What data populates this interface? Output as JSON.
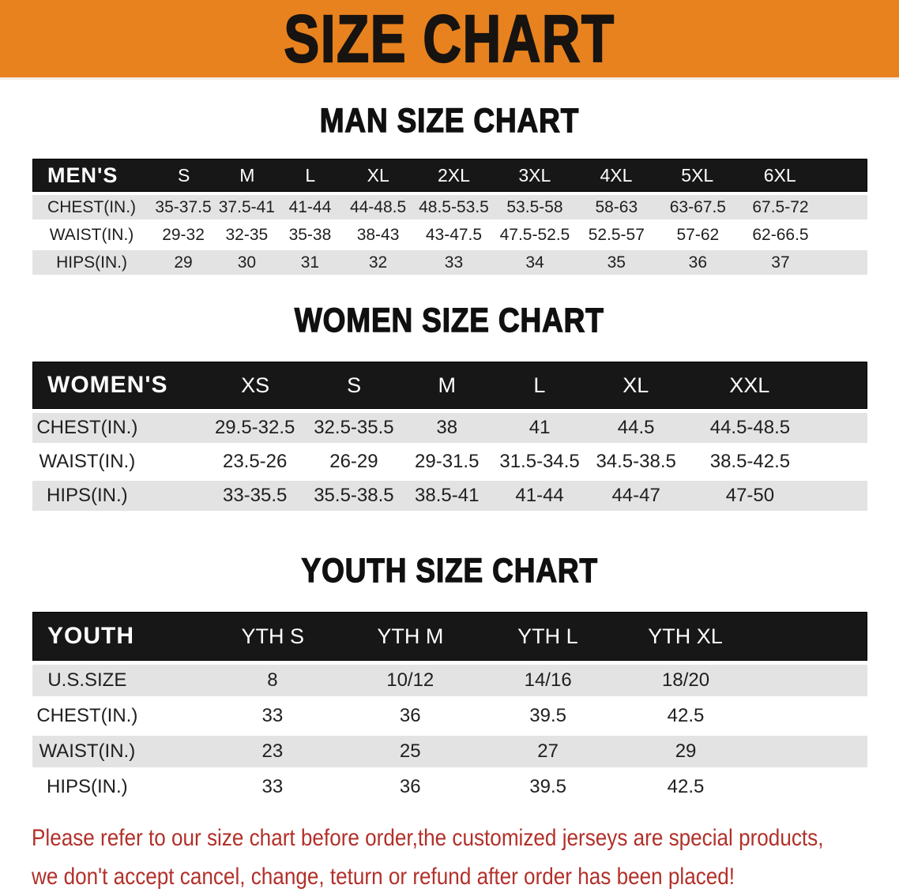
{
  "banner": {
    "title": "SIZE CHART",
    "bg_color": "#e8821e",
    "text_color": "#171310"
  },
  "sections": [
    {
      "id": "mens",
      "heading": "MAN SIZE CHART",
      "header_label": "MEN'S",
      "columns": [
        "S",
        "M",
        "L",
        "XL",
        "2XL",
        "3XL",
        "4XL",
        "5XL",
        "6XL"
      ],
      "rows": [
        {
          "label": "CHEST(IN.)",
          "values": [
            "35-37.5",
            "37.5-41",
            "41-44",
            "44-48.5",
            "48.5-53.5",
            "53.5-58",
            "58-63",
            "63-67.5",
            "67.5-72"
          ]
        },
        {
          "label": "WAIST(IN.)",
          "values": [
            "29-32",
            "32-35",
            "35-38",
            "38-43",
            "43-47.5",
            "47.5-52.5",
            "52.5-57",
            "57-62",
            "62-66.5"
          ]
        },
        {
          "label": "HIPS(IN.)",
          "values": [
            "29",
            "30",
            "31",
            "32",
            "33",
            "34",
            "35",
            "36",
            "37"
          ]
        }
      ]
    },
    {
      "id": "womens",
      "heading": "WOMEN SIZE CHART",
      "header_label": "WOMEN'S",
      "columns": [
        "XS",
        "S",
        "M",
        "L",
        "XL",
        "XXL"
      ],
      "rows": [
        {
          "label": "CHEST(IN.)",
          "values": [
            "29.5-32.5",
            "32.5-35.5",
            "38",
            "41",
            "44.5",
            "44.5-48.5"
          ]
        },
        {
          "label": "WAIST(IN.)",
          "values": [
            "23.5-26",
            "26-29",
            "29-31.5",
            "31.5-34.5",
            "34.5-38.5",
            "38.5-42.5"
          ]
        },
        {
          "label": "HIPS(IN.)",
          "values": [
            "33-35.5",
            "35.5-38.5",
            "38.5-41",
            "41-44",
            "44-47",
            "47-50"
          ]
        }
      ]
    },
    {
      "id": "youth",
      "heading": "YOUTH SIZE CHART",
      "header_label": "YOUTH",
      "columns": [
        "YTH S",
        "YTH M",
        "YTH L",
        "YTH XL"
      ],
      "rows": [
        {
          "label": "U.S.SIZE",
          "values": [
            "8",
            "10/12",
            "14/16",
            "18/20"
          ]
        },
        {
          "label": "CHEST(IN.)",
          "values": [
            "33",
            "36",
            "39.5",
            "42.5"
          ]
        },
        {
          "label": "WAIST(IN.)",
          "values": [
            "23",
            "25",
            "27",
            "29"
          ]
        },
        {
          "label": "HIPS(IN.)",
          "values": [
            "33",
            "36",
            "39.5",
            "42.5"
          ]
        }
      ]
    }
  ],
  "disclaimer": {
    "line1": "Please refer to our size chart before order,the customized jerseys are special products,",
    "line2": "we don't accept cancel, change, teturn or refund after order has been placed!",
    "color": "#b2302a"
  }
}
